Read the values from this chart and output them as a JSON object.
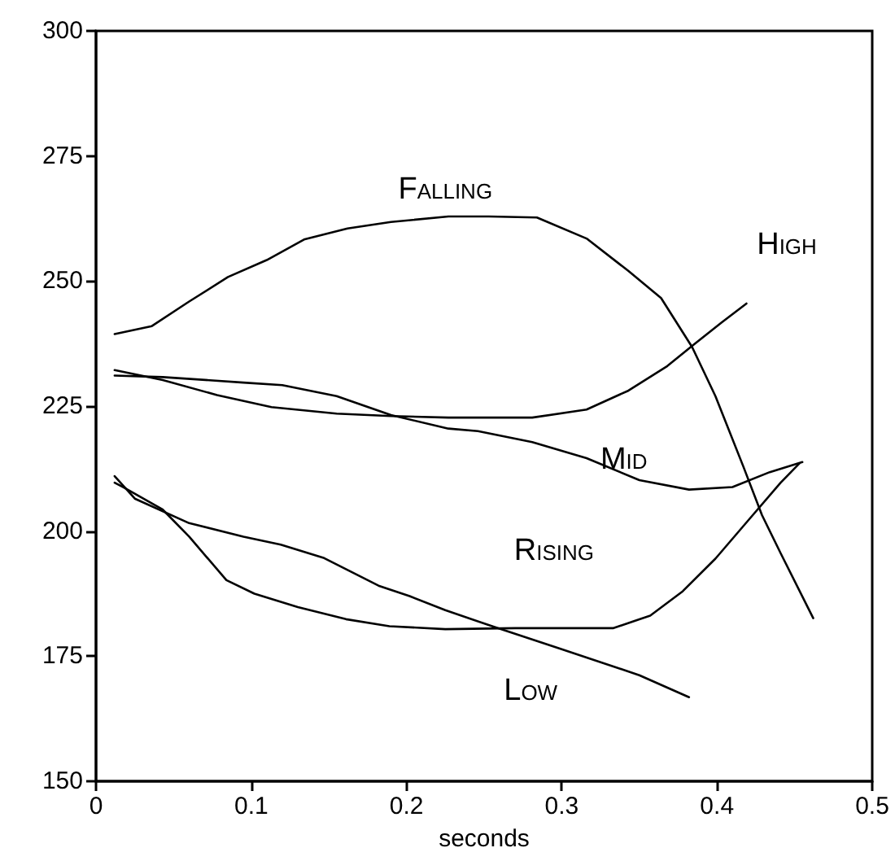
{
  "chart_data": {
    "type": "line",
    "xlabel": "seconds",
    "xlim": [
      0,
      0.5
    ],
    "xticks": [
      0,
      0.1,
      0.2,
      0.3,
      0.4,
      0.5
    ],
    "ylim": [
      150,
      300
    ],
    "yticks": [
      150,
      175,
      200,
      225,
      250,
      275,
      300
    ],
    "series": [
      {
        "name": "Falling",
        "color": "#000000",
        "x": [
          0.012,
          0.036,
          0.06,
          0.085,
          0.11,
          0.134,
          0.162,
          0.19,
          0.227,
          0.253,
          0.284,
          0.316,
          0.343,
          0.364,
          0.384,
          0.399,
          0.417,
          0.429,
          0.441,
          0.462
        ],
        "values": [
          239.4,
          241,
          245.9,
          250.8,
          254.2,
          258.3,
          260.5,
          261.8,
          262.9,
          262.9,
          262.7,
          258.5,
          252,
          246.6,
          236.8,
          227,
          212.9,
          203.2,
          195.6,
          182.6
        ]
      },
      {
        "name": "High",
        "color": "#000000",
        "x": [
          0.012,
          0.043,
          0.078,
          0.113,
          0.155,
          0.19,
          0.227,
          0.281,
          0.316,
          0.343,
          0.368,
          0.385,
          0.403,
          0.419
        ],
        "values": [
          232.2,
          230.2,
          227.2,
          224.8,
          223.5,
          223,
          222.7,
          222.7,
          224.3,
          228.1,
          233,
          237.3,
          241.7,
          245.5
        ]
      },
      {
        "name": "Mid",
        "color": "#000000",
        "x": [
          0.012,
          0.043,
          0.095,
          0.12,
          0.155,
          0.19,
          0.227,
          0.246,
          0.281,
          0.316,
          0.35,
          0.382,
          0.41,
          0.434,
          0.455
        ],
        "values": [
          231.1,
          230.8,
          229.7,
          229.2,
          227,
          223.2,
          220.5,
          220,
          217.8,
          214.6,
          210.2,
          208.3,
          208.8,
          211.8,
          213.8
        ]
      },
      {
        "name": "Rising",
        "color": "#000000",
        "x": [
          0.012,
          0.018,
          0.043,
          0.06,
          0.084,
          0.102,
          0.13,
          0.161,
          0.189,
          0.225,
          0.27,
          0.333,
          0.357,
          0.378,
          0.399,
          0.42,
          0.441,
          0.453
        ],
        "values": [
          209.7,
          208.7,
          204.3,
          198.9,
          190.2,
          187.5,
          184.8,
          182.4,
          181,
          180.4,
          180.6,
          180.6,
          183.1,
          188,
          194.5,
          202.1,
          209.7,
          213.5
        ]
      },
      {
        "name": "Low",
        "color": "#000000",
        "x": [
          0.012,
          0.025,
          0.06,
          0.095,
          0.119,
          0.147,
          0.182,
          0.202,
          0.225,
          0.256,
          0.298,
          0.35,
          0.382
        ],
        "values": [
          211,
          206.5,
          201.6,
          198.9,
          197.3,
          194.6,
          189.1,
          187,
          184.2,
          180.9,
          176.6,
          171.2,
          166.8
        ]
      }
    ]
  }
}
